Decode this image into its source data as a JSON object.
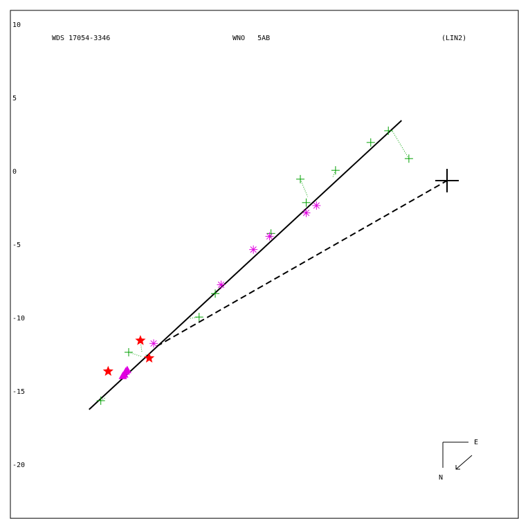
{
  "header": {
    "left": "WDS 17054-3346",
    "center": "WNO   5AB",
    "right": "(LIN2)"
  },
  "compass": {
    "east": "E",
    "north": "N"
  },
  "colors": {
    "fit_line": "#000000",
    "residual": "#00a000",
    "measurement_plus": "#00a000",
    "measurement_asterisk": "#e000e0",
    "measurement_star": "#ff0000",
    "measurement_triangle": "#e000e0"
  },
  "chart_data": {
    "type": "scatter",
    "ylim": [
      -22.5,
      12.3
    ],
    "y_ticks": [
      10,
      5,
      0,
      -5,
      -10,
      -15,
      -20
    ],
    "y_tick_labels": [
      "10",
      "5",
      "0",
      "-5",
      "-10",
      "-15",
      "-20"
    ],
    "grid": false,
    "primary": {
      "x": 0,
      "y": 0
    },
    "fit_line": {
      "from": [
        -24.4,
        -15.6
      ],
      "to": [
        -3.1,
        4.1
      ]
    },
    "closest_approach": {
      "from": [
        -19.8,
        -11.3
      ],
      "to": [
        0,
        0
      ]
    },
    "plus_points": [
      {
        "x": -23.6,
        "y": -15.0,
        "fx": -23.3,
        "fy": -14.8
      },
      {
        "x": -21.7,
        "y": -11.7,
        "fx": -20.8,
        "fy": -12.0
      },
      {
        "x": -16.9,
        "y": -9.3,
        "fx": -17.6,
        "fy": -9.4
      },
      {
        "x": -15.8,
        "y": -7.7,
        "fx": -15.8,
        "fy": -7.6
      },
      {
        "x": -12.0,
        "y": -3.6,
        "fx": -12.0,
        "fy": -3.7
      },
      {
        "x": -10.0,
        "y": 0.1,
        "fx": -9.5,
        "fy": -1.1
      },
      {
        "x": -9.6,
        "y": -1.5,
        "fx": -9.6,
        "fy": -1.5
      },
      {
        "x": -7.6,
        "y": 0.7,
        "fx": -7.8,
        "fy": 0.2
      },
      {
        "x": -5.2,
        "y": 2.6,
        "fx": -5.2,
        "fy": 2.6
      },
      {
        "x": -4.0,
        "y": 3.4,
        "fx": -4.0,
        "fy": 3.4
      },
      {
        "x": -2.6,
        "y": 1.5,
        "fx": -3.8,
        "fy": 3.5
      }
    ],
    "asterisk_points": [
      {
        "x": -20.0,
        "y": -11.1
      },
      {
        "x": -15.4,
        "y": -7.1
      },
      {
        "x": -13.2,
        "y": -4.7
      },
      {
        "x": -12.1,
        "y": -3.8
      },
      {
        "x": -9.6,
        "y": -2.2
      },
      {
        "x": -8.9,
        "y": -1.7
      }
    ],
    "star_points": [
      {
        "x": -23.1,
        "y": -13.0,
        "fx": -23.1,
        "fy": -13.0
      },
      {
        "x": -20.9,
        "y": -10.9,
        "fx": -20.8,
        "fy": -11.7
      },
      {
        "x": -20.3,
        "y": -12.1,
        "fx": -20.6,
        "fy": -11.8
      }
    ],
    "triangle_points": [
      {
        "x": -22.1,
        "y": -13.3
      },
      {
        "x": -22.0,
        "y": -13.2
      },
      {
        "x": -21.9,
        "y": -13.0
      },
      {
        "x": -21.8,
        "y": -12.9
      }
    ]
  }
}
